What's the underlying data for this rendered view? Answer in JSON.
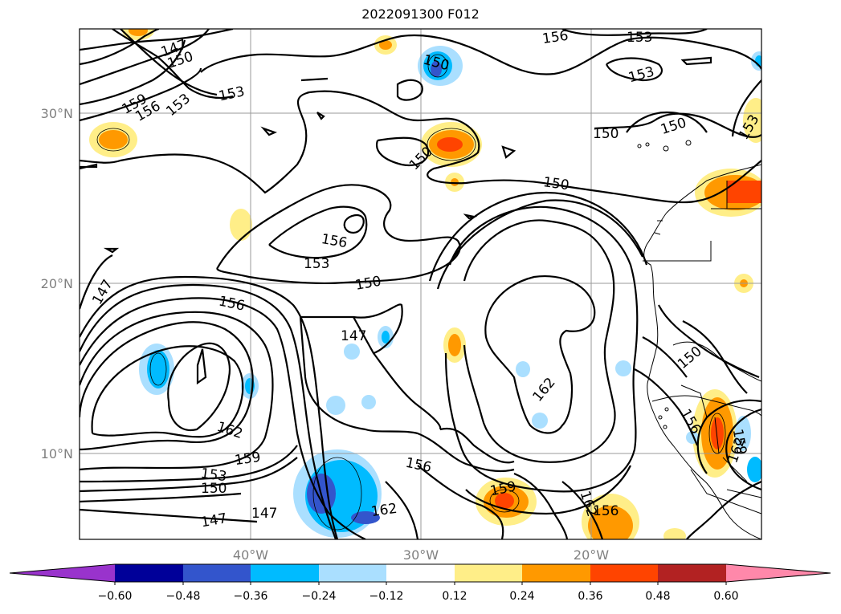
{
  "title": "2022091300 F012",
  "map": {
    "lat_ticks": [
      "30°N",
      "20°N",
      "10°N"
    ],
    "lon_ticks": [
      "40°W",
      "30°W",
      "20°W"
    ],
    "contour_labels": [
      "147",
      "150",
      "153",
      "156",
      "159",
      "162"
    ]
  },
  "colorbar": {
    "ticks": [
      "−0.60",
      "−0.48",
      "−0.36",
      "−0.24",
      "−0.12",
      "0.12",
      "0.24",
      "0.36",
      "0.48",
      "0.60"
    ],
    "colors": [
      "#9933cc",
      "#000099",
      "#3355cc",
      "#00bbff",
      "#aadfff",
      "#ffffff",
      "#ffee88",
      "#ff9900",
      "#ff4400",
      "#b22222",
      "#ff88aa"
    ]
  }
}
